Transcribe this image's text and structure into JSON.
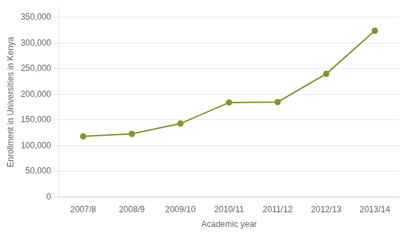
{
  "chart_data": {
    "type": "line",
    "categories": [
      "2007/8",
      "2008/9",
      "2009/10",
      "2010/11",
      "2011/12",
      "2012/13",
      "2013/14"
    ],
    "values": [
      118000,
      123000,
      143000,
      184000,
      185000,
      240000,
      324000
    ],
    "color": "#7A9A2A",
    "marker": "circle",
    "xlabel": "Academic year",
    "ylabel": "Enrollment in Universities in Kenya",
    "ylim": [
      0,
      370000
    ],
    "yticks": [
      0,
      {
        "value": 50000,
        "label": "50,000"
      },
      {
        "value": 100000,
        "label": "100,000"
      },
      {
        "value": 150000,
        "label": "150,000"
      },
      {
        "value": 200000,
        "label": "200,000"
      },
      {
        "value": 250000,
        "label": "250,000"
      },
      {
        "value": 300000,
        "label": "300,000"
      },
      {
        "value": 350000,
        "label": "350,000"
      }
    ],
    "grid": true
  }
}
